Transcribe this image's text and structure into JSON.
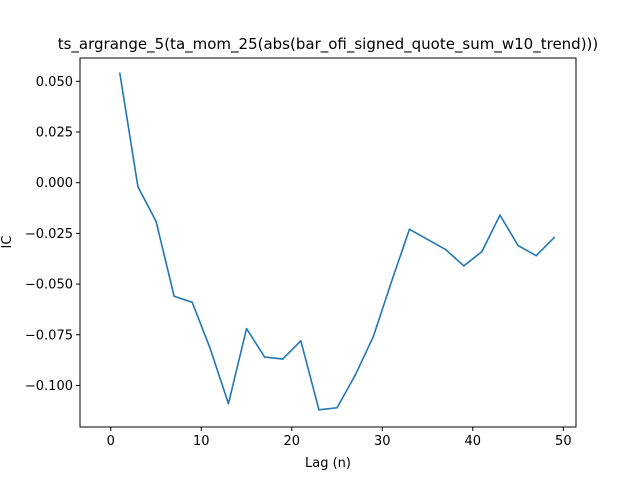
{
  "chart_data": {
    "type": "line",
    "title": "ts_argrange_5(ta_mom_25(abs(bar_ofi_signed_quote_sum_w10_trend)))",
    "xlabel": "Lag (n)",
    "ylabel": "IC",
    "xlim": [
      -3.4,
      51.4
    ],
    "ylim": [
      -0.1205,
      0.0615
    ],
    "x_ticks": [
      0,
      10,
      20,
      30,
      40,
      50
    ],
    "y_ticks": [
      0.05,
      0.025,
      0.0,
      -0.025,
      -0.05,
      -0.075,
      -0.1
    ],
    "x_tick_labels": [
      "0",
      "10",
      "20",
      "30",
      "40",
      "50"
    ],
    "y_tick_labels": [
      "0.050",
      "0.025",
      "0.000",
      "−0.025",
      "−0.050",
      "−0.075",
      "−0.100"
    ],
    "grid": false,
    "series": [
      {
        "color": "#1f77b4",
        "x": [
          1,
          3,
          5,
          7,
          9,
          11,
          13,
          15,
          17,
          19,
          21,
          23,
          25,
          27,
          29,
          31,
          33,
          35,
          37,
          39,
          41,
          43,
          45,
          47,
          49
        ],
        "y": [
          0.054,
          -0.002,
          -0.019,
          -0.056,
          -0.059,
          -0.082,
          -0.109,
          -0.072,
          -0.086,
          -0.087,
          -0.078,
          -0.112,
          -0.111,
          -0.095,
          -0.076,
          -0.049,
          -0.023,
          -0.028,
          -0.033,
          -0.041,
          -0.034,
          -0.016,
          -0.031,
          -0.036,
          -0.027
        ]
      }
    ]
  }
}
